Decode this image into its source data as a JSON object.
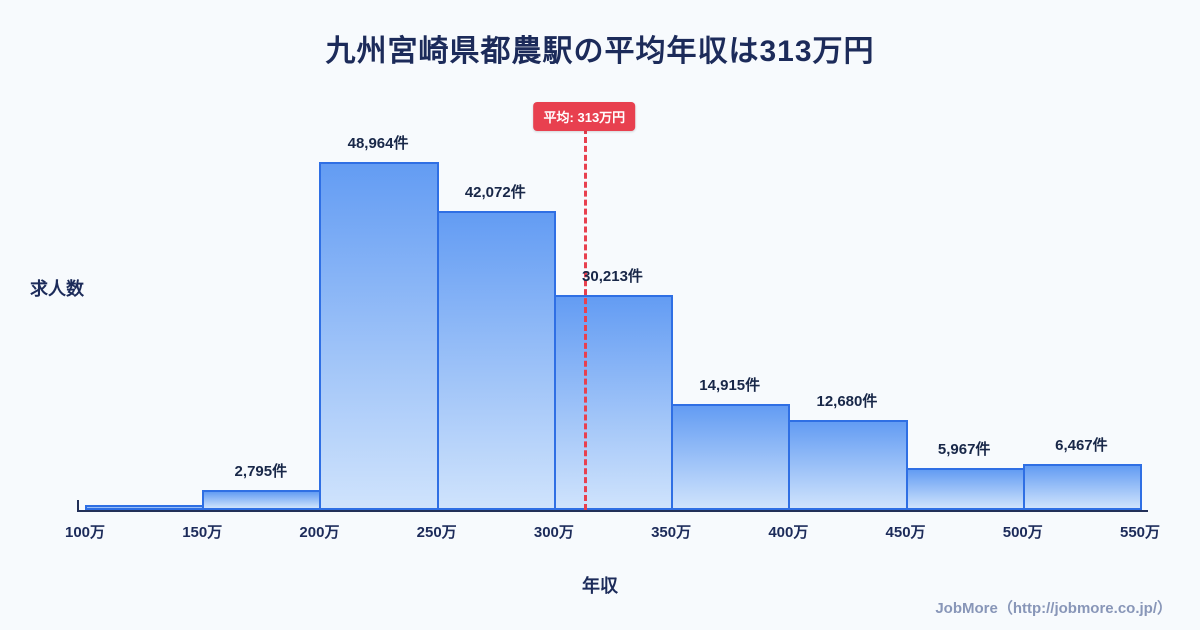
{
  "page": {
    "footer_credit": "JobMore（http://jobmore.co.jp/）"
  },
  "chart_data": {
    "type": "bar",
    "title": "九州宮崎県都農駅の平均年収は313万円",
    "xlabel": "年収",
    "ylabel": "求人数",
    "x_ticks": [
      "100万",
      "150万",
      "200万",
      "250万",
      "300万",
      "350万",
      "400万",
      "450万",
      "500万",
      "550万"
    ],
    "x_range": [
      100,
      550
    ],
    "bin_width_man_yen": 50,
    "values": [
      0,
      2795,
      48964,
      42072,
      30213,
      14915,
      12680,
      5967,
      6467
    ],
    "value_labels": [
      "",
      "2,795件",
      "48,964件",
      "42,072件",
      "30,213件",
      "14,915件",
      "12,680件",
      "5,967件",
      "6,467件"
    ],
    "ylim": [
      0,
      50000
    ],
    "grid": false,
    "legend": "none",
    "average": 313,
    "average_label": "平均: 313万円",
    "colors": {
      "bar_fill_top": "#639cf3",
      "bar_fill_bottom": "#cfe3fc",
      "bar_border": "#2f6fe4",
      "average_line": "#e8404f",
      "title_text": "#1c2b5a",
      "axis_text": "#1c2b5a",
      "background": "#f7fafd",
      "footer_text": "#8896b8"
    }
  }
}
